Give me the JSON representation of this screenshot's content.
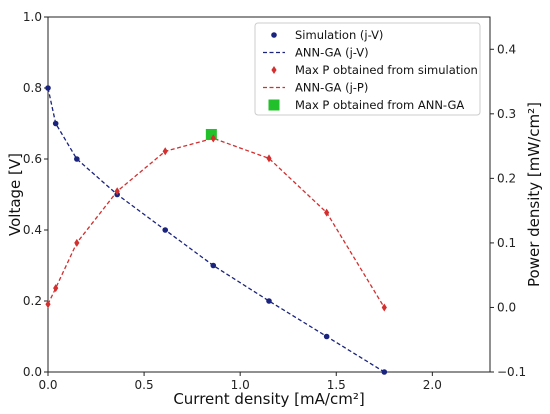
{
  "chart_data": {
    "type": "line",
    "title": "",
    "xlabel": "Current density [mA/cm²]",
    "ylabel_left": "Voltage [V]",
    "ylabel_right": "Power density [mW/cm²]",
    "xlim": [
      0.0,
      2.3
    ],
    "ylim_left": [
      0.0,
      1.0
    ],
    "ylim_right": [
      -0.1,
      0.45
    ],
    "x_ticks": [
      "0.0",
      "0.5",
      "1.0",
      "1.5",
      "2.0"
    ],
    "y_left_ticks": [
      "0.0",
      "0.2",
      "0.4",
      "0.6",
      "0.8",
      "1.0"
    ],
    "y_right_ticks": [
      "−0.1",
      "0.0",
      "0.1",
      "0.2",
      "0.3",
      "0.4"
    ],
    "grid": false,
    "legend_position": "top-right",
    "colors": {
      "jv": "#1a237e",
      "jp": "#d32f2f",
      "max_ann": "#22c02a"
    },
    "series": [
      {
        "name": "Simulation (j-V)",
        "axis": "left",
        "style": "points",
        "x": [
          0.0,
          0.04,
          0.15,
          0.36,
          0.61,
          0.86,
          1.15,
          1.45,
          1.75
        ],
        "values": [
          0.8,
          0.7,
          0.6,
          0.5,
          0.4,
          0.3,
          0.2,
          0.1,
          0.0
        ]
      },
      {
        "name": "ANN-GA (j-V)",
        "axis": "left",
        "style": "dashed-line",
        "x": [
          0.0,
          0.04,
          0.15,
          0.36,
          0.61,
          0.86,
          1.15,
          1.45,
          1.75
        ],
        "values": [
          0.8,
          0.7,
          0.6,
          0.5,
          0.4,
          0.3,
          0.2,
          0.1,
          0.0
        ]
      },
      {
        "name": "Max P obtained from simulation",
        "axis": "right",
        "style": "diamond-points",
        "x": [
          0.0,
          0.04,
          0.15,
          0.36,
          0.61,
          0.86,
          1.15,
          1.45,
          1.75
        ],
        "values": [
          0.005,
          0.03,
          0.1,
          0.18,
          0.242,
          0.262,
          0.231,
          0.147,
          0.0
        ]
      },
      {
        "name": "ANN-GA (j-P)",
        "axis": "right",
        "style": "dashed-line",
        "x": [
          0.0,
          0.04,
          0.15,
          0.36,
          0.61,
          0.86,
          1.15,
          1.45,
          1.75
        ],
        "values": [
          0.005,
          0.03,
          0.1,
          0.18,
          0.242,
          0.262,
          0.231,
          0.147,
          0.0
        ]
      },
      {
        "name": "Max P obtained from ANN-GA",
        "axis": "right",
        "style": "square-point",
        "x": [
          0.85
        ],
        "values": [
          0.268
        ]
      }
    ]
  }
}
